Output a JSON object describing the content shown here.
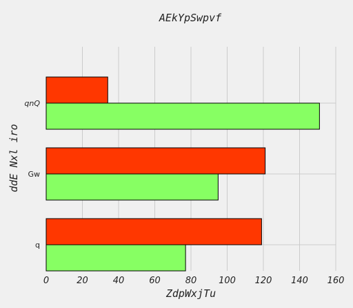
{
  "chart_data": {
    "type": "bar",
    "orientation": "horizontal",
    "title": "AEkYpSwpvf",
    "xlabel": "ZdpWxjTu",
    "ylabel": "ddE Nxl iro",
    "categories": [
      "q",
      "Gw",
      "qnQ"
    ],
    "series": [
      {
        "color": "#87ff63",
        "values": [
          77,
          95,
          151
        ]
      },
      {
        "color": "#ff3700",
        "values": [
          119,
          121,
          34
        ]
      }
    ],
    "xlim": [
      0,
      160
    ],
    "xticks": [
      0,
      20,
      40,
      60,
      80,
      100,
      120,
      140,
      160
    ],
    "grid": true,
    "legend": "none"
  }
}
